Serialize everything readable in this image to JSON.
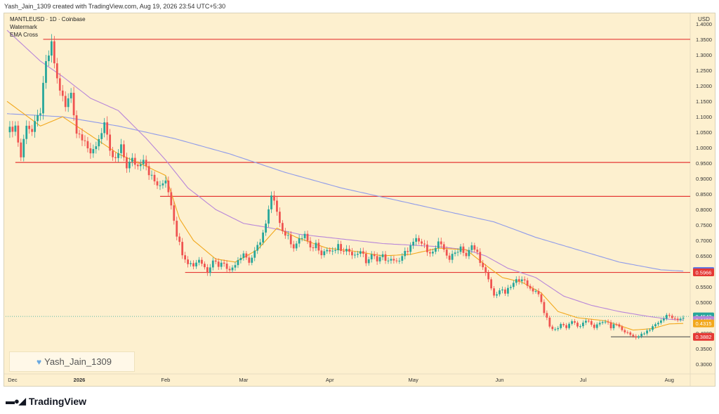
{
  "header_text": "Yash_Jain_1309 created with TradingView.com, Aug 19, 2026 23:54 UTC+5:30",
  "legend": {
    "symbol_line": "MANTLEUSD · 1D · Coinbase",
    "line2": "Watermark",
    "line3": "EMA Cross"
  },
  "watermark": {
    "icon": "heart-icon",
    "text": "Yash_Jain_1309"
  },
  "footer": {
    "logo_icon": "tradingview-logo-icon",
    "brand": "TradingView"
  },
  "colors": {
    "background": "#fdf0cf",
    "up": "#26a69a",
    "down": "#ef5350",
    "ema_fast": "#f2a81d",
    "ema_mid": "#b886d9",
    "ema_slow": "#8f9bea",
    "level_line": "#e53935"
  },
  "chart_data": {
    "type": "candlestick",
    "currency": "USD",
    "y_ticks": [
      "1.4000",
      "1.3500",
      "1.3000",
      "1.2500",
      "1.2000",
      "1.1500",
      "1.1000",
      "1.0500",
      "1.0000",
      "0.9500",
      "0.9000",
      "0.8500",
      "0.8000",
      "0.7500",
      "0.7000",
      "0.6500",
      "0.6000",
      "0.5500",
      "0.5000",
      "0.4500",
      "0.4000",
      "0.3500",
      "0.3000"
    ],
    "y_range": [
      0.275,
      1.43
    ],
    "x_labels": [
      "Dec",
      "2026",
      "Feb",
      "Mar",
      "Apr",
      "May",
      "Jun",
      "Jul",
      "Aug"
    ],
    "x_label_day_index": [
      2,
      26,
      57,
      85,
      116,
      146,
      177,
      207,
      238
    ],
    "horizontal_levels": [
      {
        "value": 1.3506,
        "label": "1.3506",
        "from_day": 13
      },
      {
        "value": 0.9523,
        "label": "0.9523",
        "from_day": 3
      },
      {
        "value": 0.8425,
        "label": "0.8425",
        "from_day": 55
      },
      {
        "value": 0.5966,
        "label": "0.5966",
        "from_day": 64
      },
      {
        "value": 0.3882,
        "label": "0.3882",
        "from_day": 217
      }
    ],
    "price_badges": [
      {
        "label": "0.6009",
        "value": 0.6009,
        "color": "#5b6fe0"
      },
      {
        "label": "0.5966",
        "value": 0.5966,
        "color": "#e53935"
      },
      {
        "label": "0.4543",
        "value": 0.4543,
        "color": "#26a69a"
      },
      {
        "label": "0.4426",
        "value": 0.4426,
        "color": "#b886d9"
      },
      {
        "label": "0.4315",
        "value": 0.4315,
        "color": "#f2a81d"
      },
      {
        "label": "0.3882",
        "value": 0.3882,
        "color": "#e53935"
      }
    ],
    "last_price": 0.4543,
    "series_anchors": [
      [
        0,
        1.05
      ],
      [
        3,
        1.07
      ],
      [
        5,
        0.97
      ],
      [
        7,
        1.08
      ],
      [
        9,
        1.05
      ],
      [
        12,
        1.12
      ],
      [
        14,
        1.27
      ],
      [
        16,
        1.33
      ],
      [
        18,
        1.22
      ],
      [
        21,
        1.13
      ],
      [
        23,
        1.18
      ],
      [
        25,
        1.05
      ],
      [
        28,
        1.03
      ],
      [
        30,
        0.97
      ],
      [
        33,
        1.03
      ],
      [
        35,
        1.08
      ],
      [
        37,
        0.98
      ],
      [
        39,
        0.96
      ],
      [
        41,
        1.0
      ],
      [
        43,
        0.94
      ],
      [
        45,
        0.96
      ],
      [
        47,
        0.94
      ],
      [
        49,
        0.97
      ],
      [
        51,
        0.92
      ],
      [
        53,
        0.89
      ],
      [
        55,
        0.87
      ],
      [
        57,
        0.9
      ],
      [
        59,
        0.82
      ],
      [
        61,
        0.72
      ],
      [
        63,
        0.66
      ],
      [
        65,
        0.63
      ],
      [
        67,
        0.62
      ],
      [
        69,
        0.64
      ],
      [
        72,
        0.6
      ],
      [
        74,
        0.64
      ],
      [
        76,
        0.62
      ],
      [
        78,
        0.63
      ],
      [
        80,
        0.6
      ],
      [
        83,
        0.64
      ],
      [
        85,
        0.66
      ],
      [
        87,
        0.63
      ],
      [
        89,
        0.66
      ],
      [
        91,
        0.7
      ],
      [
        93,
        0.75
      ],
      [
        95,
        0.84
      ],
      [
        97,
        0.8
      ],
      [
        99,
        0.73
      ],
      [
        101,
        0.71
      ],
      [
        103,
        0.68
      ],
      [
        105,
        0.7
      ],
      [
        107,
        0.72
      ],
      [
        109,
        0.67
      ],
      [
        111,
        0.69
      ],
      [
        113,
        0.66
      ],
      [
        115,
        0.67
      ],
      [
        117,
        0.66
      ],
      [
        119,
        0.68
      ],
      [
        121,
        0.66
      ],
      [
        123,
        0.67
      ],
      [
        125,
        0.65
      ],
      [
        127,
        0.67
      ],
      [
        129,
        0.63
      ],
      [
        131,
        0.65
      ],
      [
        133,
        0.64
      ],
      [
        135,
        0.65
      ],
      [
        137,
        0.63
      ],
      [
        139,
        0.64
      ],
      [
        141,
        0.63
      ],
      [
        143,
        0.66
      ],
      [
        145,
        0.68
      ],
      [
        147,
        0.7
      ],
      [
        149,
        0.69
      ],
      [
        151,
        0.67
      ],
      [
        153,
        0.66
      ],
      [
        155,
        0.69
      ],
      [
        157,
        0.67
      ],
      [
        159,
        0.64
      ],
      [
        161,
        0.66
      ],
      [
        163,
        0.68
      ],
      [
        165,
        0.65
      ],
      [
        167,
        0.68
      ],
      [
        169,
        0.66
      ],
      [
        171,
        0.61
      ],
      [
        173,
        0.57
      ],
      [
        175,
        0.52
      ],
      [
        177,
        0.54
      ],
      [
        179,
        0.53
      ],
      [
        181,
        0.55
      ],
      [
        183,
        0.57
      ],
      [
        185,
        0.58
      ],
      [
        187,
        0.55
      ],
      [
        189,
        0.54
      ],
      [
        191,
        0.53
      ],
      [
        193,
        0.47
      ],
      [
        195,
        0.42
      ],
      [
        197,
        0.41
      ],
      [
        199,
        0.43
      ],
      [
        201,
        0.42
      ],
      [
        203,
        0.44
      ],
      [
        205,
        0.42
      ],
      [
        207,
        0.43
      ],
      [
        209,
        0.44
      ],
      [
        211,
        0.42
      ],
      [
        213,
        0.43
      ],
      [
        215,
        0.44
      ],
      [
        217,
        0.42
      ],
      [
        219,
        0.43
      ],
      [
        221,
        0.41
      ],
      [
        223,
        0.4
      ],
      [
        225,
        0.39
      ],
      [
        227,
        0.39
      ],
      [
        229,
        0.4
      ],
      [
        231,
        0.41
      ],
      [
        233,
        0.43
      ],
      [
        235,
        0.44
      ],
      [
        237,
        0.46
      ],
      [
        239,
        0.45
      ],
      [
        241,
        0.44
      ],
      [
        243,
        0.4543
      ]
    ],
    "ema_fast_anchors": [
      [
        0,
        1.15
      ],
      [
        12,
        1.07
      ],
      [
        20,
        1.1
      ],
      [
        30,
        1.04
      ],
      [
        40,
        0.98
      ],
      [
        50,
        0.94
      ],
      [
        57,
        0.91
      ],
      [
        62,
        0.77
      ],
      [
        67,
        0.7
      ],
      [
        75,
        0.64
      ],
      [
        82,
        0.63
      ],
      [
        90,
        0.67
      ],
      [
        97,
        0.74
      ],
      [
        104,
        0.71
      ],
      [
        115,
        0.675
      ],
      [
        125,
        0.665
      ],
      [
        135,
        0.65
      ],
      [
        145,
        0.655
      ],
      [
        155,
        0.675
      ],
      [
        165,
        0.67
      ],
      [
        172,
        0.62
      ],
      [
        178,
        0.58
      ],
      [
        185,
        0.565
      ],
      [
        192,
        0.53
      ],
      [
        198,
        0.47
      ],
      [
        205,
        0.45
      ],
      [
        215,
        0.44
      ],
      [
        225,
        0.41
      ],
      [
        232,
        0.415
      ],
      [
        238,
        0.43
      ],
      [
        243,
        0.4315
      ]
    ],
    "ema_mid_anchors": [
      [
        0,
        1.38
      ],
      [
        12,
        1.28
      ],
      [
        20,
        1.23
      ],
      [
        30,
        1.16
      ],
      [
        40,
        1.12
      ],
      [
        50,
        1.03
      ],
      [
        57,
        0.96
      ],
      [
        65,
        0.87
      ],
      [
        75,
        0.8
      ],
      [
        85,
        0.755
      ],
      [
        95,
        0.74
      ],
      [
        105,
        0.72
      ],
      [
        115,
        0.71
      ],
      [
        125,
        0.7
      ],
      [
        135,
        0.69
      ],
      [
        145,
        0.685
      ],
      [
        155,
        0.68
      ],
      [
        165,
        0.67
      ],
      [
        172,
        0.65
      ],
      [
        180,
        0.61
      ],
      [
        190,
        0.58
      ],
      [
        200,
        0.52
      ],
      [
        210,
        0.49
      ],
      [
        220,
        0.47
      ],
      [
        230,
        0.455
      ],
      [
        238,
        0.445
      ],
      [
        243,
        0.4426
      ]
    ],
    "ema_slow_anchors": [
      [
        0,
        1.11
      ],
      [
        20,
        1.1
      ],
      [
        40,
        1.07
      ],
      [
        60,
        1.03
      ],
      [
        80,
        0.98
      ],
      [
        100,
        0.92
      ],
      [
        120,
        0.87
      ],
      [
        140,
        0.83
      ],
      [
        160,
        0.79
      ],
      [
        175,
        0.76
      ],
      [
        190,
        0.71
      ],
      [
        205,
        0.67
      ],
      [
        220,
        0.63
      ],
      [
        235,
        0.605
      ],
      [
        243,
        0.6009
      ]
    ],
    "total_days": 246
  }
}
